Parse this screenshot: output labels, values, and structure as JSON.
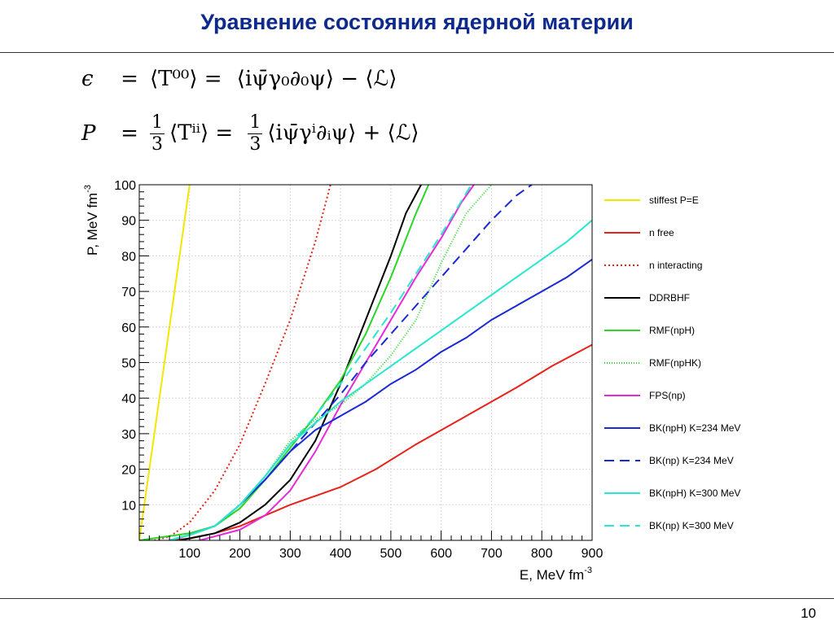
{
  "slide": {
    "title": "Уравнение состояния ядерной материи",
    "page_number": "10"
  },
  "formulas": {
    "eq1_lhs": "ϵ",
    "eq1_mid": "⟨T⁰⁰⟩ =",
    "eq1_rhs": "⟨iψ̄γ₀∂₀ψ⟩ − ⟨ℒ⟩",
    "eq2_lhs": "P",
    "eq2_frac_num": "1",
    "eq2_frac_den": "3",
    "eq2_mid": "⟨Tⁱⁱ⟩ =",
    "eq2_rhs": "⟨iψ̄γⁱ∂ᵢψ⟩ + ⟨ℒ⟩",
    "eq_sign": "="
  },
  "chart_data": {
    "type": "line",
    "xlabel": "E, MeV fm",
    "xlabel_sup": "-3",
    "ylabel": "P, MeV fm",
    "ylabel_sup": "-3",
    "xlim": [
      0,
      900
    ],
    "ylim": [
      0,
      100
    ],
    "xticks": [
      100,
      200,
      300,
      400,
      500,
      600,
      700,
      800,
      900
    ],
    "yticks": [
      10,
      20,
      30,
      40,
      50,
      60,
      70,
      80,
      90,
      100
    ],
    "grid": true,
    "legend_position": "right",
    "series": [
      {
        "name": "stiffest P=E",
        "color": "#f5e600",
        "dash": "solid",
        "x": [
          0,
          100
        ],
        "y": [
          0,
          100
        ]
      },
      {
        "name": "n free",
        "color": "#e8221a",
        "dash": "solid",
        "x": [
          60,
          100,
          150,
          200,
          250,
          300,
          350,
          400,
          470,
          550,
          650,
          750,
          820,
          900
        ],
        "y": [
          0,
          0.5,
          2,
          4,
          7,
          10,
          12.5,
          15,
          20,
          27,
          35,
          43,
          49,
          55
        ]
      },
      {
        "name": "n interacting",
        "color": "#e8221a",
        "dash": "2,3",
        "x": [
          30,
          60,
          100,
          150,
          200,
          250,
          300,
          350,
          380
        ],
        "y": [
          0,
          1,
          5,
          14,
          27,
          44,
          62,
          84,
          100
        ]
      },
      {
        "name": "DDRBHF",
        "color": "#000000",
        "dash": "solid",
        "x": [
          80,
          150,
          200,
          250,
          300,
          350,
          400,
          450,
          500,
          530,
          560
        ],
        "y": [
          0,
          2,
          5,
          10,
          17,
          28,
          44,
          62,
          80,
          92,
          100
        ]
      },
      {
        "name": "RMF(npH)",
        "color": "#2ad62a",
        "dash": "solid",
        "x": [
          0,
          100,
          150,
          200,
          250,
          300,
          350,
          400,
          450,
          500,
          550,
          575
        ],
        "y": [
          0,
          2,
          4,
          9,
          17,
          26,
          35,
          45,
          58,
          74,
          92,
          100
        ]
      },
      {
        "name": "RMF(npHK)",
        "color": "#2ad62a",
        "dash": "1,2",
        "x": [
          0,
          100,
          150,
          200,
          250,
          300,
          350,
          400,
          450,
          500,
          550,
          600,
          650,
          700
        ],
        "y": [
          0,
          2,
          4,
          9,
          18,
          28,
          34,
          38,
          44,
          52,
          62,
          78,
          92,
          100
        ]
      },
      {
        "name": "FPS(np)",
        "color": "#e52ad9",
        "dash": "solid",
        "x": [
          120,
          200,
          250,
          300,
          350,
          400,
          450,
          500,
          550,
          600,
          640,
          665
        ],
        "y": [
          0,
          3,
          7,
          14,
          25,
          38,
          50,
          62,
          74,
          85,
          95,
          100
        ]
      },
      {
        "name": "BK(npH) K=234 MeV",
        "color": "#1a2ad6",
        "dash": "solid",
        "x": [
          60,
          100,
          150,
          200,
          250,
          300,
          350,
          400,
          450,
          500,
          550,
          600,
          650,
          700,
          750,
          800,
          850,
          900
        ],
        "y": [
          0,
          1.5,
          4,
          10,
          17,
          25,
          31,
          35,
          39,
          44,
          48,
          53,
          57,
          62,
          66,
          70,
          74,
          79
        ]
      },
      {
        "name": "BK(np) K=234 MeV",
        "color": "#1a2ad6",
        "dash": "12,7",
        "x": [
          60,
          100,
          150,
          200,
          250,
          300,
          350,
          400,
          450,
          500,
          550,
          600,
          650,
          700,
          750,
          780
        ],
        "y": [
          0,
          1.5,
          4,
          10,
          17,
          25,
          33,
          41,
          50,
          58,
          66,
          74,
          82,
          90,
          97,
          100
        ]
      },
      {
        "name": "BK(npH) K=300 MeV",
        "color": "#2ae6cf",
        "dash": "solid",
        "x": [
          60,
          100,
          150,
          200,
          250,
          300,
          350,
          400,
          450,
          500,
          550,
          600,
          650,
          700,
          750,
          800,
          850,
          900
        ],
        "y": [
          0,
          1.5,
          4,
          10,
          18,
          27,
          33,
          39,
          44,
          49,
          54,
          59,
          64,
          69,
          74,
          79,
          84,
          90
        ]
      },
      {
        "name": "BK(np) K=300 MeV",
        "color": "#2ae6cf",
        "dash": "12,7",
        "x": [
          60,
          100,
          150,
          200,
          250,
          300,
          350,
          400,
          450,
          500,
          550,
          600,
          660
        ],
        "y": [
          0,
          1.5,
          4,
          10,
          18,
          27,
          35,
          44,
          54,
          64,
          75,
          86,
          100
        ]
      }
    ]
  }
}
